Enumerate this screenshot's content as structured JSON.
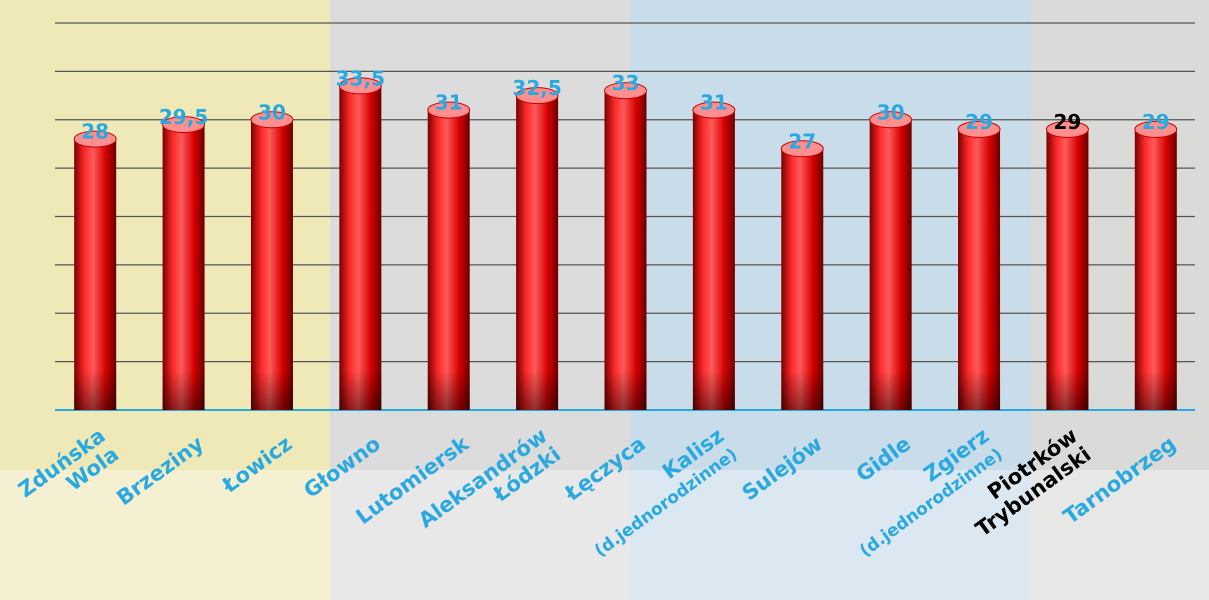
{
  "chart_data": {
    "type": "bar",
    "categories": [
      "Zduńska Wola",
      "Brzeziny",
      "Łowicz",
      "Głowno",
      "Lutomiersk",
      "Aleksandrów Łódzki",
      "Łęczyca",
      "Kalisz (d.jednorodzinne)",
      "Sulejów",
      "Gidle",
      "Zgierz (d.jednorodzinne)",
      "Piotrków Trybunalski",
      "Tarnobrzeg"
    ],
    "values": [
      28,
      29.5,
      30,
      33.5,
      31,
      32.5,
      33,
      31,
      27,
      30,
      29,
      29,
      29
    ],
    "value_labels": [
      "28",
      "29,5",
      "30",
      "33,5",
      "31",
      "32,5",
      "33",
      "31",
      "27",
      "30",
      "29",
      "29",
      "29"
    ],
    "color": "#e0141c",
    "label_colors": [
      "#29a9e0",
      "#29a9e0",
      "#29a9e0",
      "#29a9e0",
      "#29a9e0",
      "#29a9e0",
      "#29a9e0",
      "#29a9e0",
      "#29a9e0",
      "#29a9e0",
      "#29a9e0",
      "#000000",
      "#29a9e0"
    ],
    "ylim": [
      0,
      40
    ],
    "yticks": [
      0,
      5,
      10,
      15,
      20,
      25,
      30,
      35,
      40
    ],
    "grid": true
  }
}
